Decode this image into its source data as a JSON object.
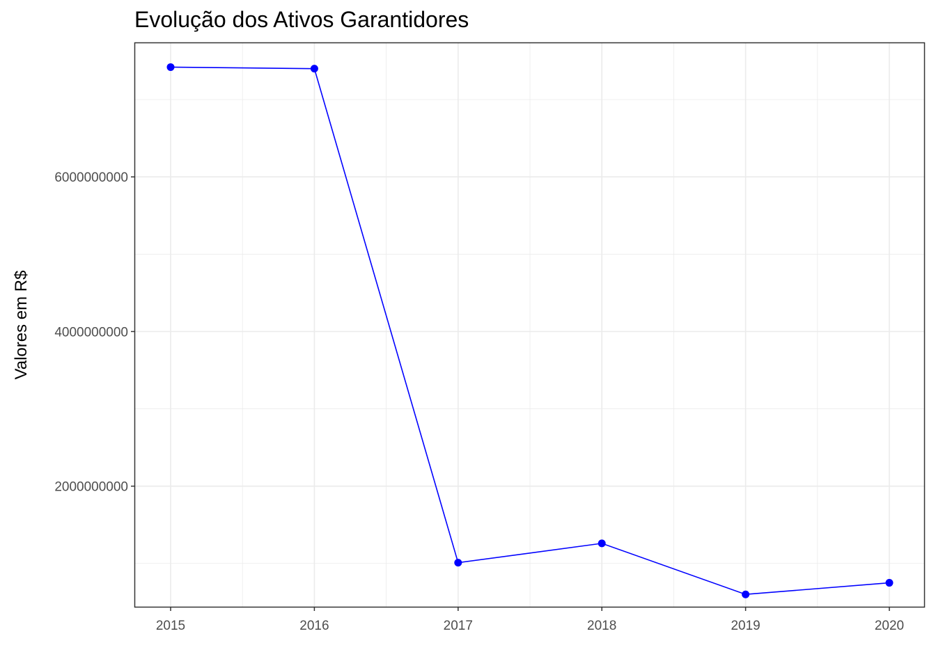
{
  "chart_data": {
    "type": "line",
    "title": "Evolução dos Ativos Garantidores",
    "xlabel": "",
    "ylabel": "Valores em R$",
    "x": [
      "2015",
      "2016",
      "2017",
      "2018",
      "2019",
      "2020"
    ],
    "series": [
      {
        "values": [
          7420000000,
          7400000000,
          1010000000,
          1260000000,
          600000000,
          750000000
        ]
      }
    ],
    "y_ticks": [
      "2000000000",
      "4000000000",
      "6000000000"
    ],
    "x_ticks": [
      "2015",
      "2016",
      "2017",
      "2018",
      "2019",
      "2020"
    ],
    "ylim": [
      440000000,
      7730000000
    ],
    "grid": true,
    "colors": {
      "line": "#0000ff",
      "point": "#0000ff",
      "grid": "#ebebeb",
      "border": "#333333"
    }
  }
}
